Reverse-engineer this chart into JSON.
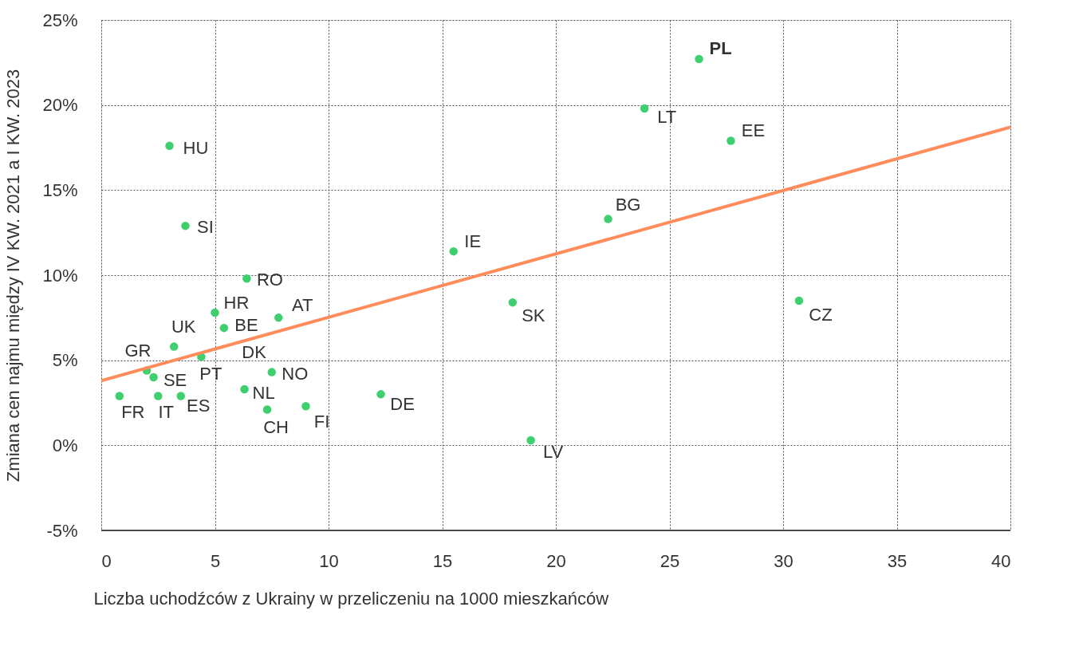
{
  "chart_data": {
    "type": "scatter",
    "xlabel": "Liczba uchodźców z Ukrainy w przeliczeniu na 1000 mieszkańców",
    "ylabel": "Zmiana cen najmu między IV KW. 2021 a I KW. 2023",
    "xlim": [
      0,
      40
    ],
    "xticks": [
      0,
      5,
      10,
      15,
      20,
      25,
      30,
      35,
      40
    ],
    "ylim": [
      -5,
      25
    ],
    "yticks": [
      {
        "value": -5,
        "label": "-5%"
      },
      {
        "value": 0,
        "label": "0%"
      },
      {
        "value": 5,
        "label": "5%"
      },
      {
        "value": 10,
        "label": "10%"
      },
      {
        "value": 15,
        "label": "15%"
      },
      {
        "value": 20,
        "label": "20%"
      },
      {
        "value": 25,
        "label": "25%"
      }
    ],
    "grid": true,
    "marker": "circle",
    "series": [
      {
        "color": "#3ecf6f",
        "x": [
          26.3,
          23.9,
          27.7,
          3.0,
          22.3,
          3.7,
          15.5,
          6.4,
          18.1,
          30.7,
          5.0,
          7.8,
          5.4,
          3.2,
          4.4,
          2.0,
          7.5,
          2.3,
          6.3,
          12.3,
          0.8,
          2.5,
          3.5,
          9.0,
          7.3,
          18.9
        ],
        "values": [
          22.7,
          19.8,
          17.9,
          17.6,
          13.3,
          12.9,
          11.4,
          9.8,
          8.4,
          8.5,
          7.8,
          7.5,
          6.9,
          5.8,
          5.2,
          4.4,
          4.3,
          4.0,
          3.3,
          3.0,
          2.9,
          2.9,
          2.9,
          2.3,
          2.1,
          0.3
        ]
      },
      {
        "type": "line",
        "color": "#ff8c5a",
        "x": [
          0,
          40
        ],
        "values": [
          3.8,
          18.7
        ],
        "line_style": "solid",
        "marker": "none"
      }
    ],
    "annotations": [
      {
        "text": "PL",
        "x": 26.3,
        "y": 22.7
      },
      {
        "text": "LT",
        "x": 23.9,
        "y": 19.8
      },
      {
        "text": "EE",
        "x": 27.7,
        "y": 17.9
      },
      {
        "text": "HU",
        "x": 3.0,
        "y": 17.6
      },
      {
        "text": "BG",
        "x": 22.3,
        "y": 13.3
      },
      {
        "text": "SI",
        "x": 3.7,
        "y": 12.9
      },
      {
        "text": "IE",
        "x": 15.5,
        "y": 11.4
      },
      {
        "text": "RO",
        "x": 6.4,
        "y": 9.8
      },
      {
        "text": "SK",
        "x": 18.1,
        "y": 8.4
      },
      {
        "text": "CZ",
        "x": 30.7,
        "y": 8.5
      },
      {
        "text": "HR",
        "x": 5.0,
        "y": 7.8
      },
      {
        "text": "AT",
        "x": 7.8,
        "y": 7.5
      },
      {
        "text": "BE",
        "x": 5.4,
        "y": 6.9
      },
      {
        "text": "UK",
        "x": 3.2,
        "y": 5.8
      },
      {
        "text": "PT",
        "x": 4.4,
        "y": 5.2
      },
      {
        "text": "GR",
        "x": 2.0,
        "y": 4.4
      },
      {
        "text": "NO",
        "x": 7.5,
        "y": 4.3
      },
      {
        "text": "SE",
        "x": 2.3,
        "y": 4.0
      },
      {
        "text": "NL",
        "x": 6.3,
        "y": 3.3
      },
      {
        "text": "DE",
        "x": 12.3,
        "y": 3.0
      },
      {
        "text": "FR",
        "x": 0.8,
        "y": 2.9
      },
      {
        "text": "IT",
        "x": 2.5,
        "y": 2.9
      },
      {
        "text": "ES",
        "x": 3.5,
        "y": 2.9
      },
      {
        "text": "FI",
        "x": 9.0,
        "y": 2.3
      },
      {
        "text": "CH",
        "x": 7.3,
        "y": 2.1
      },
      {
        "text": "LV",
        "x": 18.9,
        "y": 0.3
      },
      "DK"
    ]
  }
}
